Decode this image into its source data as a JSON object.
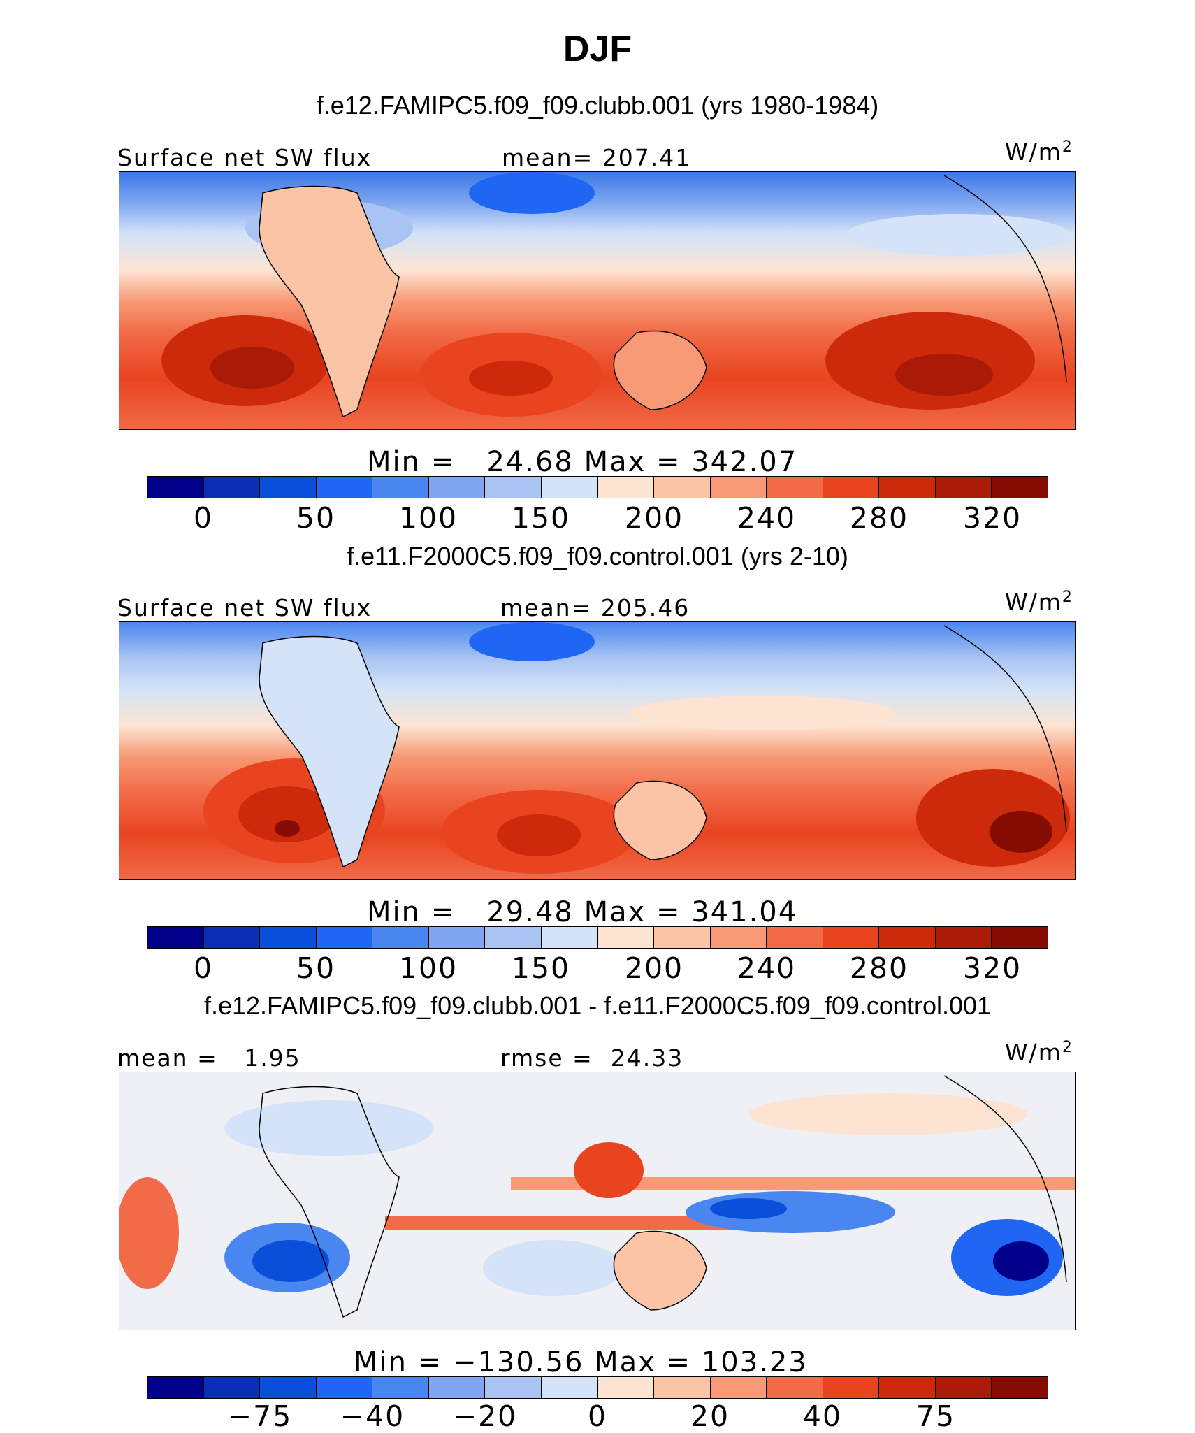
{
  "title": "DJF",
  "panels": [
    {
      "case": "f.e12.FAMIPC5.f09_f09.clubb.001 (yrs 1980-1984)",
      "left_label": "Surface net SW flux",
      "center_label": "mean= 207.41",
      "units": "W/m",
      "units_sup": "2",
      "minmax": "Min =   24.68 Max = 342.07",
      "colorbar_ticks": [
        "0",
        "50",
        "100",
        "150",
        "200",
        "240",
        "280",
        "320"
      ]
    },
    {
      "case": "f.e11.F2000C5.f09_f09.control.001 (yrs 2-10)",
      "left_label": "Surface net SW flux",
      "center_label": "mean= 205.46",
      "units": "W/m",
      "units_sup": "2",
      "minmax": "Min =   29.48 Max = 341.04",
      "colorbar_ticks": [
        "0",
        "50",
        "100",
        "150",
        "200",
        "240",
        "280",
        "320"
      ]
    },
    {
      "case": "f.e12.FAMIPC5.f09_f09.clubb.001 - f.e11.F2000C5.f09_f09.control.001",
      "left_label": "mean =   1.95",
      "center_label": "rmse =  24.33",
      "units": "W/m",
      "units_sup": "2",
      "minmax": "Min = −130.56 Max = 103.23",
      "colorbar_ticks": [
        "−75",
        "−40",
        "−20",
        "0",
        "20",
        "40",
        "75"
      ]
    }
  ],
  "colors": {
    "colorbar": [
      "#00008b",
      "#0a2fb5",
      "#0a4fd9",
      "#1f66f2",
      "#4a86f0",
      "#7fa6f0",
      "#a9c4f3",
      "#d4e3f7",
      "#fde4d2",
      "#fbc4a6",
      "#f79a75",
      "#f26b48",
      "#e84420",
      "#cc2a0a",
      "#a91b06",
      "#860b02"
    ]
  }
}
